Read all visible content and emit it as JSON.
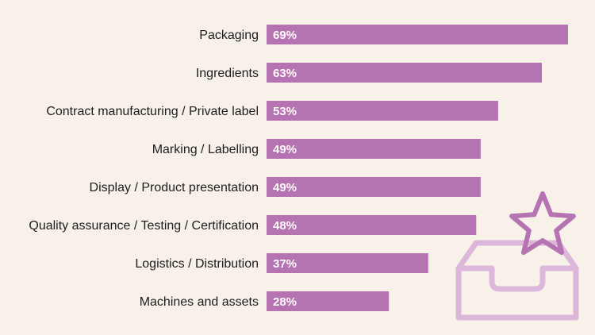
{
  "chart_data": {
    "type": "bar",
    "orientation": "horizontal",
    "categories": [
      "Packaging",
      "Ingredients",
      "Contract manufacturing / Private label",
      "Marking / Labelling",
      "Display / Product presentation",
      "Quality assurance / Testing / Certification",
      "Logistics / Distribution",
      "Machines and assets"
    ],
    "values": [
      69,
      63,
      53,
      49,
      49,
      48,
      37,
      28
    ],
    "value_labels": [
      "69%",
      "63%",
      "53%",
      "49%",
      "49%",
      "48%",
      "37%",
      "28%"
    ],
    "unit": "%",
    "xlim": [
      0,
      75
    ],
    "grid": false,
    "legend": "none"
  },
  "colors": {
    "background": "#f8f1ea",
    "bar": "#b574b1",
    "icon": "#ddb7d9",
    "star": "#b574b1",
    "label_text": "#1d1d1d",
    "value_text": "#ffffff"
  },
  "icons": {
    "decoration": "inbox-tray-star-icon"
  }
}
